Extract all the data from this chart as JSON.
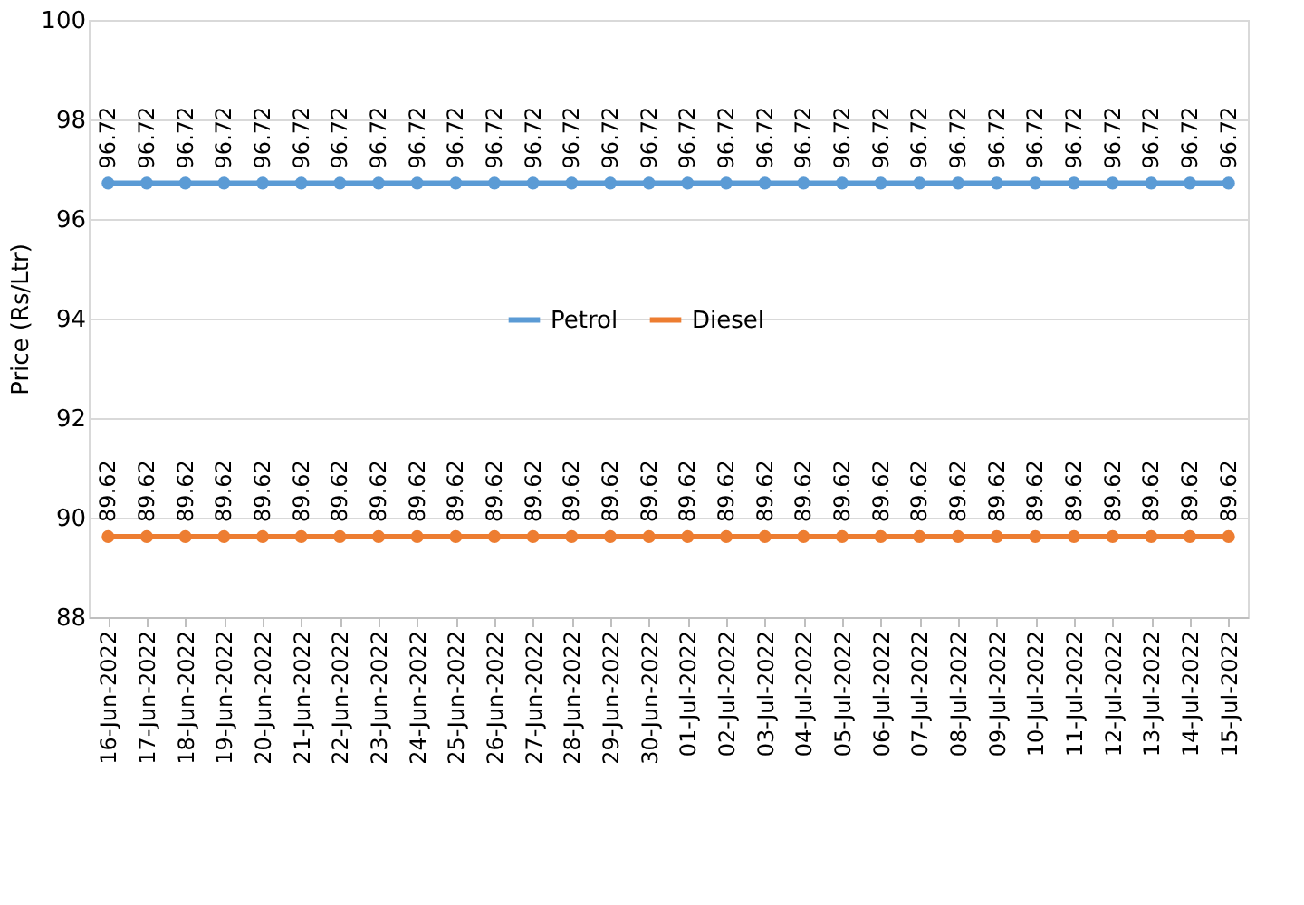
{
  "chart_data": {
    "type": "line",
    "ylabel": "Price (Rs/Ltr)",
    "categories": [
      "16-Jun-2022",
      "17-Jun-2022",
      "18-Jun-2022",
      "19-Jun-2022",
      "20-Jun-2022",
      "21-Jun-2022",
      "22-Jun-2022",
      "23-Jun-2022",
      "24-Jun-2022",
      "25-Jun-2022",
      "26-Jun-2022",
      "27-Jun-2022",
      "28-Jun-2022",
      "29-Jun-2022",
      "30-Jun-2022",
      "01-Jul-2022",
      "02-Jul-2022",
      "03-Jul-2022",
      "04-Jul-2022",
      "05-Jul-2022",
      "06-Jul-2022",
      "07-Jul-2022",
      "08-Jul-2022",
      "09-Jul-2022",
      "10-Jul-2022",
      "11-Jul-2022",
      "12-Jul-2022",
      "13-Jul-2022",
      "14-Jul-2022",
      "15-Jul-2022"
    ],
    "series": [
      {
        "name": "Petrol",
        "color": "#5b9bd5",
        "values": [
          96.72,
          96.72,
          96.72,
          96.72,
          96.72,
          96.72,
          96.72,
          96.72,
          96.72,
          96.72,
          96.72,
          96.72,
          96.72,
          96.72,
          96.72,
          96.72,
          96.72,
          96.72,
          96.72,
          96.72,
          96.72,
          96.72,
          96.72,
          96.72,
          96.72,
          96.72,
          96.72,
          96.72,
          96.72,
          96.72
        ]
      },
      {
        "name": "Diesel",
        "color": "#ed7d31",
        "values": [
          89.62,
          89.62,
          89.62,
          89.62,
          89.62,
          89.62,
          89.62,
          89.62,
          89.62,
          89.62,
          89.62,
          89.62,
          89.62,
          89.62,
          89.62,
          89.62,
          89.62,
          89.62,
          89.62,
          89.62,
          89.62,
          89.62,
          89.62,
          89.62,
          89.62,
          89.62,
          89.62,
          89.62,
          89.62,
          89.62
        ]
      }
    ],
    "ylim": [
      88,
      100
    ],
    "yticks": [
      88,
      90,
      92,
      94,
      96,
      98,
      100
    ],
    "grid": "y",
    "legend": "center",
    "marker": "circle",
    "line_style": "solid",
    "data_labels": true
  }
}
